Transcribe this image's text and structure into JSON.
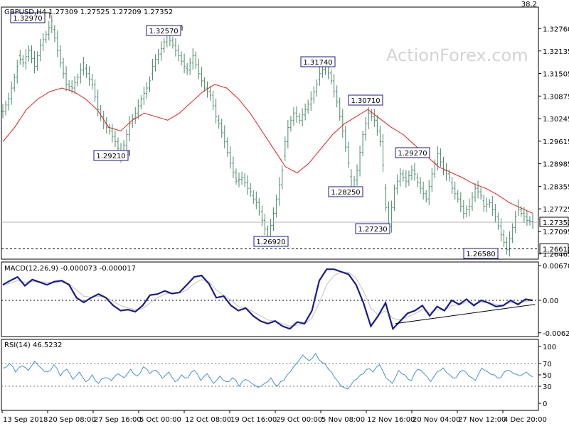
{
  "chart_data": [
    {
      "type": "candlestick",
      "title": "GBPUSD,H4  1.27309 1.27525 1.27209 1.27352",
      "symbol": "GBPUSD",
      "timeframe": "H4",
      "ohlc_last": {
        "open": 1.27309,
        "high": 1.27525,
        "low": 1.27209,
        "close": 1.27352
      },
      "corner_value": "38.2",
      "watermark": "ActionForex.com",
      "ylim": [
        1.2632,
        1.3336
      ],
      "y_ticks": [
        "1.32760",
        "1.32135",
        "1.31505",
        "1.30875",
        "1.30245",
        "1.29615",
        "1.28985",
        "1.28355",
        "1.27725",
        "1.27095",
        "1.26465"
      ],
      "current_price": "1.27352",
      "support_level": "1.26610",
      "series": [
        {
          "name": "price",
          "points": [
            1.3045,
            1.308,
            1.314,
            1.32,
            1.318,
            1.3215,
            1.317,
            1.323,
            1.326,
            1.3297,
            1.325,
            1.318,
            1.312,
            1.311,
            1.314,
            1.318,
            1.315,
            1.312,
            1.305,
            1.301,
            1.299,
            1.296,
            1.2921,
            1.295,
            1.301,
            1.304,
            1.308,
            1.311,
            1.315,
            1.319,
            1.322,
            1.3257,
            1.323,
            1.32,
            1.317,
            1.316,
            1.32,
            1.315,
            1.311,
            1.309,
            1.303,
            1.301,
            1.296,
            1.29,
            1.285,
            1.286,
            1.283,
            1.281,
            1.279,
            1.274,
            1.2692,
            1.276,
            1.284,
            1.292,
            1.3,
            1.304,
            1.302,
            1.305,
            1.308,
            1.312,
            1.315,
            1.3174,
            1.313,
            1.3071,
            1.299,
            1.29,
            1.2825,
            1.288,
            1.298,
            1.304,
            1.302,
            1.296,
            1.283,
            1.2723,
            1.283,
            1.287,
            1.285,
            1.288,
            1.286,
            1.283,
            1.28,
            1.287,
            1.2927,
            1.288,
            1.286,
            1.283,
            1.28,
            1.276,
            1.278,
            1.283,
            1.281,
            1.278,
            1.279,
            1.275,
            1.27,
            1.2658,
            1.272,
            1.278,
            1.276,
            1.274,
            1.2735
          ]
        },
        {
          "name": "ma",
          "points": [
            1.296,
            1.3,
            1.305,
            1.308,
            1.31,
            1.311,
            1.31,
            1.308,
            1.305,
            1.3,
            1.299,
            1.302,
            1.304,
            1.303,
            1.302,
            1.304,
            1.307,
            1.31,
            1.312,
            1.311,
            1.308,
            1.304,
            1.299,
            1.294,
            1.289,
            1.2873,
            1.29,
            1.294,
            1.298,
            1.301,
            1.303,
            1.305,
            1.3025,
            1.3,
            1.298,
            1.295,
            1.292,
            1.289,
            1.2875,
            1.286,
            1.2842,
            1.283,
            1.2812,
            1.279,
            1.2775,
            1.276
          ]
        }
      ],
      "annotations": [
        {
          "label": "1.32970"
        },
        {
          "label": "1.32570"
        },
        {
          "label": "1.31740"
        },
        {
          "label": "1.30710"
        },
        {
          "label": "1.29210"
        },
        {
          "label": "1.29270"
        },
        {
          "label": "1.28250"
        },
        {
          "label": "1.27230"
        },
        {
          "label": "1.26920"
        },
        {
          "label": "1.26580"
        }
      ]
    },
    {
      "type": "line",
      "title": "MACD(12,26,9) -0.000073 -0.000017",
      "ylim": [
        -0.007,
        0.0074
      ],
      "y_ticks": [
        "0.006706",
        "0.00",
        "-0.00628"
      ],
      "current_value": "0.00",
      "series": [
        {
          "name": "macd",
          "points": [
            0.003,
            0.0038,
            0.0045,
            0.0028,
            0.004,
            0.0035,
            0.003,
            0.0036,
            0.0038,
            0.003,
            0.0005,
            -0.0004,
            0.0005,
            0.0012,
            0.0005,
            -0.001,
            -0.002,
            -0.0018,
            -0.0022,
            -0.001,
            0.001,
            0.0012,
            0.0018,
            0.0013,
            0.0015,
            0.003,
            0.0045,
            0.0048,
            0.0032,
            0.0005,
            0.0008,
            -0.001,
            -0.002,
            -0.0015,
            -0.003,
            -0.004,
            -0.0045,
            -0.004,
            -0.005,
            -0.0055,
            -0.0042,
            -0.0045,
            -0.002,
            0.0038,
            0.006,
            0.006,
            0.0055,
            0.005,
            0.003,
            -0.0005,
            -0.005,
            -0.003,
            -0.0005,
            -0.0055,
            -0.004,
            -0.0025,
            -0.002,
            -0.001,
            -0.003,
            -0.0012,
            -0.002,
            0.0,
            -0.0008,
            0.0002,
            -0.001,
            0.0,
            -0.0005,
            -0.0012,
            -0.001,
            0.0,
            -0.0008,
            0.0002,
            0.0
          ]
        },
        {
          "name": "signal",
          "points": [
            0.0028,
            0.0033,
            0.0038,
            0.0035,
            0.0036,
            0.0036,
            0.0035,
            0.0034,
            0.0034,
            0.0032,
            0.002,
            0.0008,
            0.0006,
            0.0008,
            0.0006,
            -0.0002,
            -0.001,
            -0.0015,
            -0.0018,
            -0.0016,
            -0.0005,
            0.0005,
            0.0012,
            0.0014,
            0.0014,
            0.002,
            0.0032,
            0.004,
            0.0036,
            0.002,
            0.001,
            0.0,
            -0.0012,
            -0.0015,
            -0.0022,
            -0.003,
            -0.0038,
            -0.004,
            -0.0045,
            -0.005,
            -0.0048,
            -0.0046,
            -0.0034,
            -0.0005,
            0.003,
            0.0048,
            0.0055,
            0.0054,
            0.0042,
            0.0018,
            -0.0015,
            -0.0028,
            -0.002,
            -0.0035,
            -0.0038,
            -0.0032,
            -0.0026,
            -0.0018,
            -0.0024,
            -0.0018,
            -0.0019,
            -0.001,
            -0.0009,
            -0.0004,
            -0.0007,
            -0.0004,
            -0.0004,
            -0.0008,
            -0.0009,
            -0.0004,
            -0.0006,
            -0.0002,
            -0.0001
          ]
        }
      ],
      "trendline": [
        -0.0045,
        -0.0008
      ]
    },
    {
      "type": "line",
      "title": "RSI(14) 46.5232",
      "ylim": [
        0,
        100
      ],
      "y_ticks": [
        "100",
        "70",
        "50",
        "30",
        "0"
      ],
      "levels": [
        70,
        30
      ],
      "series": [
        {
          "name": "rsi",
          "points": [
            62,
            70,
            55,
            66,
            58,
            74,
            62,
            55,
            68,
            48,
            60,
            42,
            55,
            38,
            50,
            35,
            45,
            40,
            52,
            45,
            60,
            48,
            64,
            52,
            58,
            44,
            55,
            38,
            50,
            45,
            58,
            40,
            52,
            35,
            48,
            38,
            45,
            30,
            42,
            35,
            28,
            35,
            45,
            30,
            40,
            55,
            70,
            85,
            75,
            88,
            72,
            60,
            45,
            30,
            25,
            40,
            50,
            60,
            55,
            68,
            45,
            35,
            58,
            50,
            40,
            60,
            52,
            38,
            55,
            62,
            50,
            45,
            58,
            48,
            40,
            62,
            55,
            50,
            45,
            58,
            52,
            48,
            55,
            46.5
          ]
        }
      ]
    }
  ],
  "x_labels": [
    "13 Sep 2018",
    "20 Sep 08:00",
    "27 Sep 16:00",
    "5 Oct 00:00",
    "12 Oct 08:00",
    "19 Oct 16:00",
    "29 Oct 00:00",
    "5 Nov 08:00",
    "12 Nov 16:00",
    "20 Nov 04:00",
    "27 Nov 12:00",
    "4 Dec 20:00"
  ],
  "colors": {
    "price_bar": "#4a8a6a",
    "ma": "#e02020",
    "macd": "#1a1a8c",
    "signal": "#c0c0c0",
    "rsi": "#4a90d0",
    "label_border": "#1a1a8c"
  }
}
